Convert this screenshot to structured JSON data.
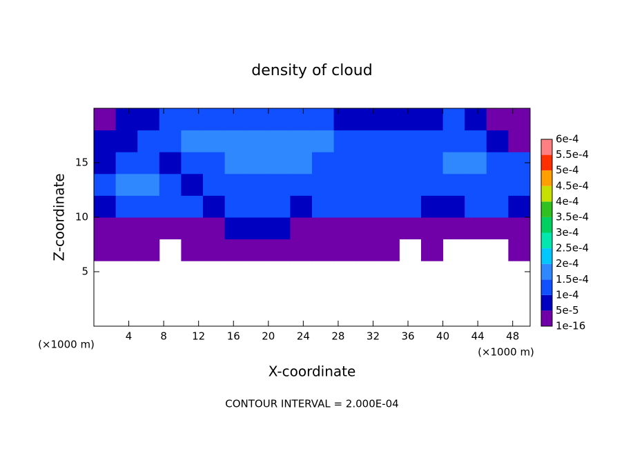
{
  "chart_data": {
    "type": "contour",
    "title": "density of cloud",
    "x_label": "X-coordinate",
    "y_label": "Z-coordinate",
    "x_unit": "(×1000 m)",
    "y_unit": "(×1000 m)",
    "annotation": "CONTOUR INTERVAL = 2.000E-04",
    "xlim": [
      0,
      50
    ],
    "ylim": [
      0,
      20
    ],
    "xticks": [
      4,
      8,
      12,
      16,
      20,
      24,
      28,
      32,
      36,
      40,
      44,
      48
    ],
    "yticks": [
      5,
      10,
      15
    ],
    "x": [
      1.25,
      3.75,
      6.25,
      8.75,
      11.25,
      13.75,
      16.25,
      18.75,
      21.25,
      23.75,
      26.25,
      28.75,
      31.25,
      33.75,
      36.25,
      38.75,
      41.25,
      43.75,
      46.25,
      48.75
    ],
    "y": [
      1,
      3,
      5,
      7,
      9,
      11,
      13,
      15,
      17,
      19
    ],
    "z": [
      [
        null,
        null,
        null,
        null,
        null,
        null,
        null,
        null,
        null,
        null,
        null,
        null,
        null,
        null,
        null,
        null,
        null,
        null,
        null,
        null
      ],
      [
        null,
        null,
        null,
        null,
        null,
        null,
        null,
        null,
        null,
        null,
        null,
        null,
        null,
        null,
        null,
        null,
        null,
        null,
        null,
        null
      ],
      [
        null,
        null,
        null,
        null,
        null,
        null,
        null,
        null,
        null,
        null,
        null,
        null,
        null,
        null,
        null,
        null,
        null,
        null,
        null,
        null
      ],
      [
        1e-05,
        1e-05,
        1e-05,
        null,
        1e-05,
        1e-05,
        1e-05,
        1e-05,
        1e-05,
        1e-05,
        1e-05,
        1e-05,
        1e-05,
        1e-05,
        null,
        1e-05,
        null,
        null,
        null,
        1e-05
      ],
      [
        2e-05,
        2e-05,
        2e-05,
        2e-05,
        2e-05,
        3e-05,
        6e-05,
        6e-05,
        6e-05,
        3e-05,
        2e-05,
        2e-05,
        2e-05,
        2e-05,
        2e-05,
        2e-05,
        3e-05,
        2e-05,
        2e-05,
        2e-05
      ],
      [
        9e-05,
        0.00011,
        0.00011,
        0.00011,
        0.00011,
        7e-05,
        0.00011,
        0.00012,
        0.00011,
        9e-05,
        0.00011,
        0.00011,
        0.00011,
        0.00011,
        0.00011,
        9e-05,
        9e-05,
        0.00011,
        0.00011,
        9e-05
      ],
      [
        0.00012,
        0.00016,
        0.00016,
        0.00012,
        9e-05,
        0.00012,
        0.00012,
        0.00012,
        0.00012,
        0.00012,
        0.00012,
        0.00012,
        0.00012,
        0.00012,
        0.00012,
        0.00012,
        0.00012,
        0.00012,
        0.00012,
        0.00012
      ],
      [
        8e-05,
        0.00012,
        0.00012,
        7e-05,
        0.00012,
        0.00012,
        0.00016,
        0.00016,
        0.00016,
        0.00016,
        0.00012,
        0.00012,
        0.00012,
        0.00012,
        0.00012,
        0.00012,
        0.00016,
        0.00016,
        0.00012,
        0.00011
      ],
      [
        6e-05,
        7e-05,
        0.00011,
        0.00012,
        0.00016,
        0.00016,
        0.00016,
        0.00016,
        0.00016,
        0.00016,
        0.00016,
        0.00012,
        0.00012,
        0.00012,
        0.00012,
        0.00012,
        0.00011,
        0.00011,
        8e-05,
        4e-05
      ],
      [
        3e-05,
        6e-05,
        8e-05,
        0.00011,
        0.00011,
        0.00011,
        0.00011,
        0.00011,
        0.00011,
        0.00011,
        0.00011,
        8e-05,
        7e-05,
        6e-05,
        7e-05,
        8e-05,
        0.0001,
        6e-05,
        3e-05,
        3e-05
      ]
    ],
    "colorbar_ticks": [
      1e-16,
      {
        "value": 5e-05,
        "label": "5e-5"
      },
      {
        "value": 0.0001,
        "label": "1e-4"
      },
      {
        "value": 0.00015,
        "label": "1.5e-4"
      },
      {
        "value": 0.0002,
        "label": "2e-4"
      },
      {
        "value": 0.00025,
        "label": "2.5e-4"
      },
      {
        "value": 0.0003,
        "label": "3e-4"
      },
      {
        "value": 0.00035,
        "label": "3.5e-4"
      },
      {
        "value": 0.0004,
        "label": "4e-4"
      },
      {
        "value": 0.00045,
        "label": "4.5e-4"
      },
      {
        "value": 0.0005,
        "label": "5e-4"
      },
      {
        "value": 0.00055,
        "label": "5.5e-4"
      },
      {
        "value": 0.0006,
        "label": "6e-4"
      }
    ],
    "colorbar_colors": [
      "#7000a8",
      "#0000c0",
      "#1050ff",
      "#3088ff",
      "#00c8ff",
      "#00e8b0",
      "#00d060",
      "#30c020",
      "#c8e000",
      "#ffa000",
      "#ff3000",
      "#ff8080"
    ]
  }
}
